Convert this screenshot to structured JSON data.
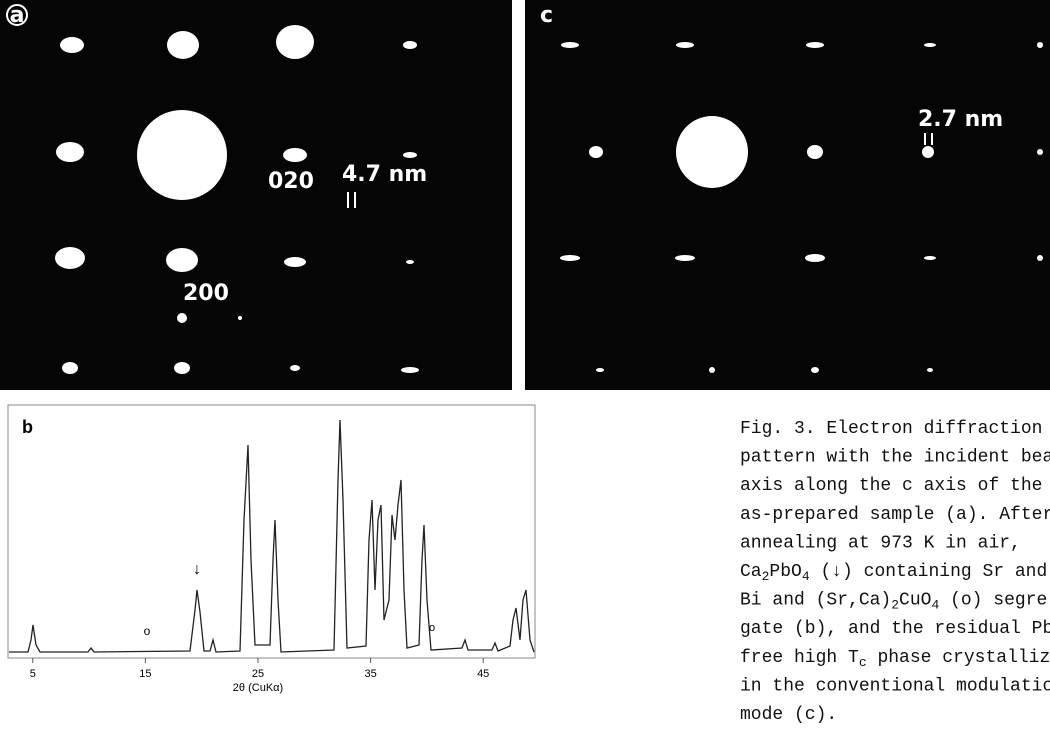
{
  "panel_a": {
    "label": "a",
    "labels": [
      "020",
      "4.7 nm",
      "200"
    ]
  },
  "panel_c": {
    "label": "c",
    "labels": [
      "2.7 nm"
    ]
  },
  "panel_b": {
    "label": "b",
    "x_axis_label": "2θ (CuKα)",
    "xticks": [
      5,
      15,
      25,
      35,
      45
    ],
    "xlim": [
      2.8,
      49.6
    ],
    "markers": [
      "↓",
      "o",
      "o"
    ]
  },
  "caption": {
    "lines": [
      [
        "Fig. 3.  Electron diffraction"
      ],
      [
        "pattern with the incident bea"
      ],
      [
        "axis along the c axis of the"
      ],
      [
        "as-prepared sample (a). After"
      ],
      [
        "annealing at 973 K in air,"
      ],
      [
        "Ca",
        "2",
        "PbO",
        "4",
        " (↓) containing Sr and"
      ],
      [
        "Bi and (Sr,Ca)",
        "2",
        "CuO",
        "4",
        " (o) segre"
      ],
      [
        "gate (b), and the residual Pb-"
      ],
      [
        "free high T",
        "c",
        " phase crystallize"
      ],
      [
        "in the conventional modulatio"
      ],
      [
        "mode (c)."
      ]
    ]
  }
}
